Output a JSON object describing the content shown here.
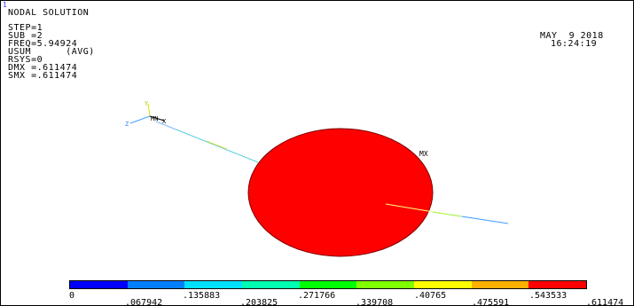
{
  "window_number": "1",
  "header": {
    "title": "NODAL SOLUTION",
    "lines": [
      "STEP=1",
      "SUB =2",
      "FREQ=5.94924",
      "USUM      (AVG)",
      "RSYS=0",
      "DMX =.611474",
      "SMX =.611474"
    ],
    "date": "MAY  9 2018",
    "time": "16:24:19"
  },
  "model": {
    "min_marker": "MN",
    "max_marker": "MX",
    "axis_labels": {
      "y": "Y",
      "z": "Z",
      "x": "X"
    },
    "body_color": "#ff0000"
  },
  "legend": {
    "colors": [
      "#0000ff",
      "#0080ff",
      "#00e0ff",
      "#00ffb0",
      "#00ff00",
      "#80ff00",
      "#ffff00",
      "#ffb000",
      "#ff0000"
    ],
    "values_top": [
      "0",
      ".135883",
      ".271766",
      ".40765",
      ".543533"
    ],
    "values_bottom": [
      ".067942",
      ".203825",
      ".339708",
      ".475591",
      ".611474"
    ]
  }
}
